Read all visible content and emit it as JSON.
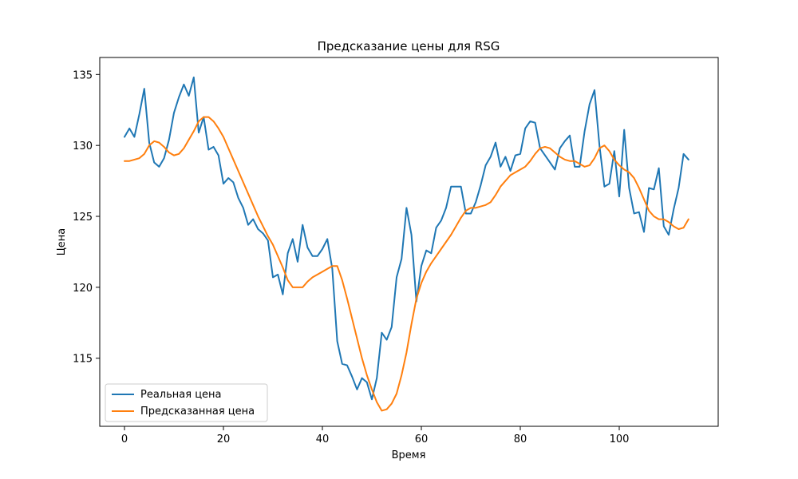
{
  "chart_data": {
    "type": "line",
    "title": "Предсказание цены для RSG",
    "xlabel": "Время",
    "ylabel": "Цена",
    "xlim": [
      -5,
      120
    ],
    "ylim": [
      110.2,
      136.2
    ],
    "xticks": [
      0,
      20,
      40,
      60,
      80,
      100
    ],
    "yticks": [
      115,
      120,
      125,
      130,
      135
    ],
    "grid": false,
    "legend_position": "lower-left",
    "series": [
      {
        "name": "Реальная цена",
        "color": "#1f77b4",
        "values": [
          130.6,
          131.2,
          130.6,
          132.2,
          134.0,
          130.2,
          128.8,
          128.5,
          129.1,
          130.4,
          132.3,
          133.4,
          134.3,
          133.5,
          134.8,
          130.9,
          132.0,
          129.7,
          129.9,
          129.3,
          127.3,
          127.7,
          127.4,
          126.3,
          125.6,
          124.4,
          124.8,
          124.1,
          123.8,
          123.3,
          120.7,
          120.9,
          119.5,
          122.4,
          123.4,
          121.8,
          124.4,
          122.8,
          122.2,
          122.2,
          122.7,
          123.4,
          121.3,
          116.2,
          114.6,
          114.5,
          113.7,
          112.8,
          113.6,
          113.3,
          112.1,
          113.6,
          116.8,
          116.3,
          117.2,
          120.7,
          122.0,
          125.6,
          123.7,
          119.0,
          121.5,
          122.6,
          122.4,
          124.2,
          124.7,
          125.6,
          127.1,
          127.1,
          127.1,
          125.2,
          125.2,
          126.0,
          127.2,
          128.6,
          129.2,
          130.2,
          128.5,
          129.2,
          128.2,
          129.3,
          129.4,
          131.2,
          131.7,
          131.6,
          129.8,
          129.3,
          128.8,
          128.3,
          129.8,
          130.3,
          130.7,
          128.5,
          128.5,
          131.0,
          132.9,
          133.9,
          130.0,
          127.1,
          127.3,
          129.6,
          126.4,
          131.1,
          127.0,
          125.2,
          125.3,
          123.9,
          127.0,
          126.9,
          128.4,
          124.3,
          123.7,
          125.5,
          127.0,
          129.4,
          129.0
        ]
      },
      {
        "name": "Предсказанная цена",
        "color": "#ff7f0e",
        "values": [
          128.9,
          128.9,
          129.0,
          129.1,
          129.4,
          130.0,
          130.3,
          130.2,
          129.9,
          129.5,
          129.3,
          129.4,
          129.8,
          130.4,
          131.0,
          131.7,
          132.0,
          132.0,
          131.7,
          131.2,
          130.6,
          129.8,
          129.0,
          128.2,
          127.4,
          126.6,
          125.8,
          125.0,
          124.3,
          123.6,
          123.0,
          122.2,
          121.4,
          120.5,
          120.0,
          120.0,
          120.0,
          120.4,
          120.7,
          120.9,
          121.1,
          121.3,
          121.5,
          121.5,
          120.5,
          119.2,
          117.8,
          116.4,
          115.0,
          113.8,
          112.8,
          111.9,
          111.3,
          111.4,
          111.8,
          112.5,
          113.8,
          115.4,
          117.4,
          119.2,
          120.3,
          121.1,
          121.7,
          122.2,
          122.7,
          123.2,
          123.7,
          124.3,
          124.9,
          125.4,
          125.6,
          125.6,
          125.7,
          125.8,
          126.0,
          126.5,
          127.1,
          127.5,
          127.9,
          128.1,
          128.3,
          128.5,
          128.9,
          129.4,
          129.8,
          129.9,
          129.8,
          129.5,
          129.2,
          129.0,
          128.9,
          128.9,
          128.7,
          128.5,
          128.6,
          129.1,
          129.8,
          130.0,
          129.6,
          129.0,
          128.6,
          128.3,
          128.1,
          127.7,
          127.0,
          126.2,
          125.4,
          125.0,
          124.8,
          124.8,
          124.6,
          124.3,
          124.1,
          124.2,
          124.8
        ]
      }
    ]
  }
}
